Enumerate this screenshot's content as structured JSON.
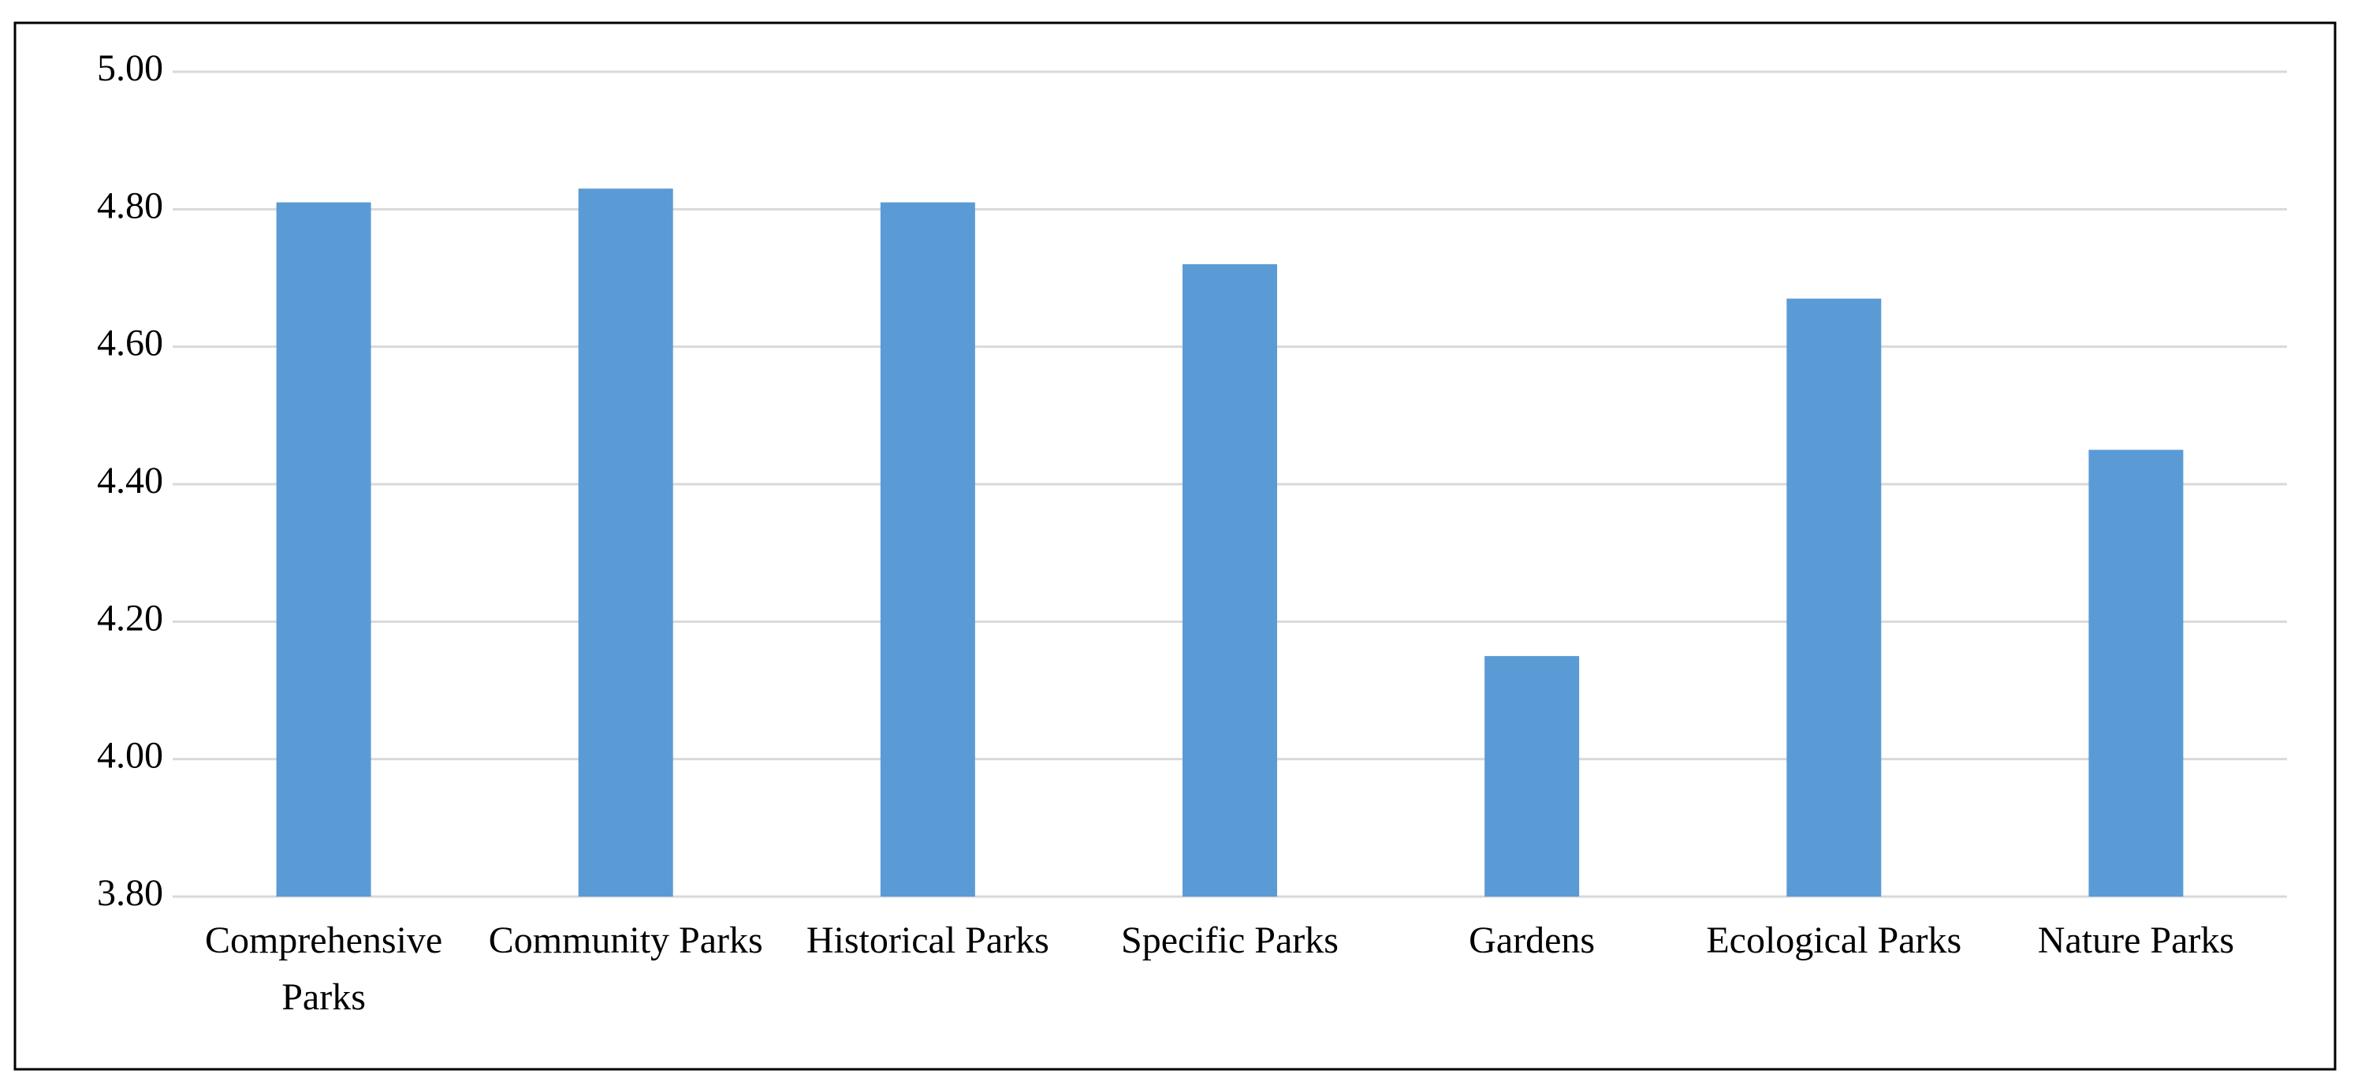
{
  "chart_data": {
    "type": "bar",
    "categories": [
      "Comprehensive Parks",
      "Community Parks",
      "Historical Parks",
      "Specific Parks",
      "Gardens",
      "Ecological Parks",
      "Nature Parks"
    ],
    "values": [
      4.81,
      4.83,
      4.81,
      4.72,
      4.15,
      4.67,
      4.45
    ],
    "color": "#5b9bd5",
    "ylim": [
      3.8,
      5.0
    ],
    "yticks": [
      {
        "value": 3.8,
        "label": "3.80"
      },
      {
        "value": 4.0,
        "label": "4.00"
      },
      {
        "value": 4.2,
        "label": "4.20"
      },
      {
        "value": 4.4,
        "label": "4.40"
      },
      {
        "value": 4.6,
        "label": "4.60"
      },
      {
        "value": 4.8,
        "label": "4.80"
      },
      {
        "value": 5.0,
        "label": "5.00"
      }
    ],
    "grid": true
  }
}
